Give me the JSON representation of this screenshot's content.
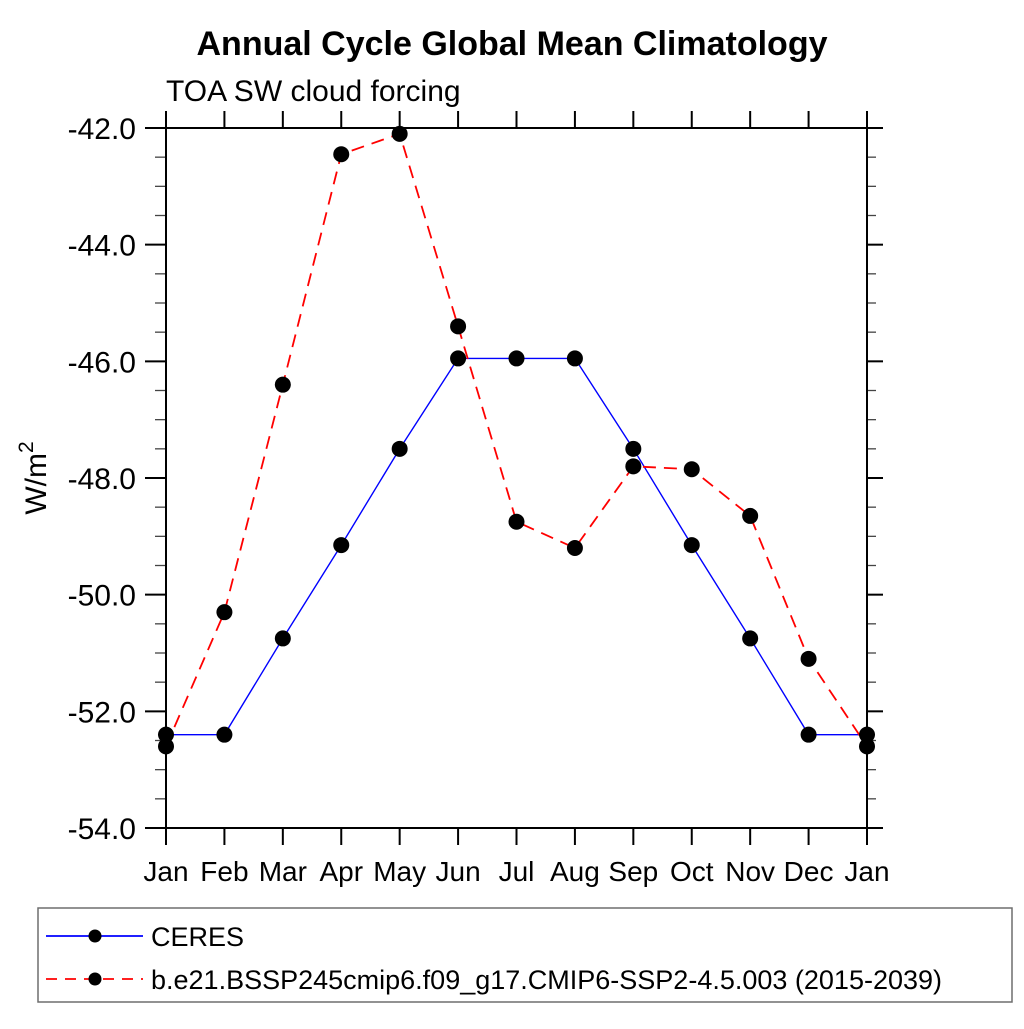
{
  "chart_data": {
    "type": "line",
    "title": "Annual Cycle Global Mean Climatology",
    "subtitle": "TOA SW cloud forcing",
    "ylabel": "W/m",
    "ylabel_superscript": "2",
    "categories": [
      "Jan",
      "Feb",
      "Mar",
      "Apr",
      "May",
      "Jun",
      "Jul",
      "Aug",
      "Sep",
      "Oct",
      "Nov",
      "Dec",
      "Jan"
    ],
    "ylim": [
      -54.0,
      -42.0
    ],
    "y_major_tick_step": 2.0,
    "y_minor_tick_step": 0.5,
    "y_tick_labels": [
      "-42.0",
      "-44.0",
      "-46.0",
      "-48.0",
      "-50.0",
      "-52.0",
      "-54.0"
    ],
    "grid": "off",
    "legend_position": "bottom",
    "series": [
      {
        "name": "CERES",
        "color": "#0000ff",
        "line_style": "solid",
        "marker": "filled-circle",
        "marker_color": "#000000",
        "values": [
          -52.4,
          -52.4,
          -50.75,
          -49.15,
          -47.5,
          -45.95,
          -45.95,
          -45.95,
          -47.5,
          -49.15,
          -50.75,
          -52.4,
          -52.4
        ]
      },
      {
        "name": "b.e21.BSSP245cmip6.f09_g17.CMIP6-SSP2-4.5.003 (2015-2039)",
        "color": "#ff0000",
        "line_style": "dashed",
        "marker": "filled-circle",
        "marker_color": "#000000",
        "values": [
          -52.6,
          -50.3,
          -46.4,
          -42.45,
          -42.1,
          -45.4,
          -48.75,
          -49.2,
          -47.8,
          -47.85,
          -48.65,
          -51.1,
          -52.6
        ]
      }
    ]
  }
}
